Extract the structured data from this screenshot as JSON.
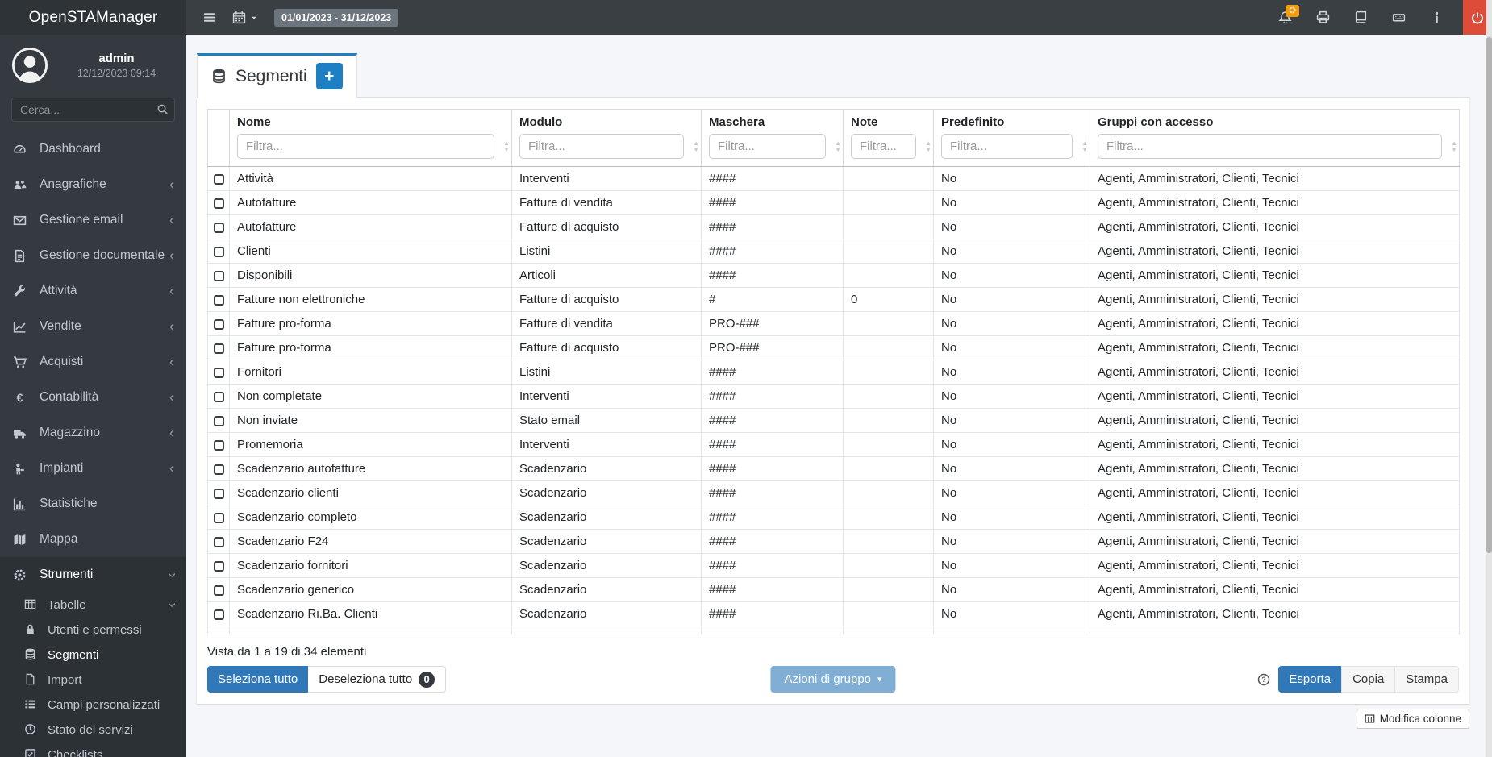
{
  "brand": "OpenSTAManager",
  "topbar": {
    "date_range": "01/01/2023 - 31/12/2023",
    "icons": [
      "menu-icon",
      "calendar-icon",
      "bell-icon",
      "printer-icon",
      "book-icon",
      "keyboard-icon",
      "info-icon",
      "power-icon"
    ]
  },
  "sidebar": {
    "user": {
      "name": "admin",
      "datetime": "12/12/2023 09:14"
    },
    "search_placeholder": "Cerca...",
    "items": [
      {
        "label": "Dashboard",
        "icon": "tachometer-icon",
        "chevron": false
      },
      {
        "label": "Anagrafiche",
        "icon": "users-icon",
        "chevron": true
      },
      {
        "label": "Gestione email",
        "icon": "envelope-icon",
        "chevron": true
      },
      {
        "label": "Gestione documentale",
        "icon": "document-icon",
        "chevron": true
      },
      {
        "label": "Attività",
        "icon": "wrench-icon",
        "chevron": true
      },
      {
        "label": "Vendite",
        "icon": "chart-line-icon",
        "chevron": true
      },
      {
        "label": "Acquisti",
        "icon": "cart-icon",
        "chevron": true
      },
      {
        "label": "Contabilità",
        "icon": "euro-icon",
        "chevron": true
      },
      {
        "label": "Magazzino",
        "icon": "truck-icon",
        "chevron": true
      },
      {
        "label": "Impianti",
        "icon": "machine-icon",
        "chevron": true
      },
      {
        "label": "Statistiche",
        "icon": "bar-chart-icon",
        "chevron": false
      },
      {
        "label": "Mappa",
        "icon": "map-icon",
        "chevron": false
      }
    ],
    "tools": {
      "label": "Strumenti",
      "icon": "gear-icon",
      "children": [
        {
          "label": "Tabelle",
          "icon": "table-icon",
          "expanded": true
        },
        {
          "label": "Utenti e permessi",
          "icon": "lock-icon"
        },
        {
          "label": "Segmenti",
          "icon": "database-icon",
          "active": true
        },
        {
          "label": "Import",
          "icon": "import-icon"
        },
        {
          "label": "Campi personalizzati",
          "icon": "list-icon"
        },
        {
          "label": "Stato dei servizi",
          "icon": "clock-icon"
        },
        {
          "label": "Checklists",
          "icon": "checklist-icon"
        }
      ]
    }
  },
  "page": {
    "tab_title": "Segmenti",
    "add_label": "+"
  },
  "table": {
    "columns": [
      {
        "label": "Nome",
        "filter_placeholder": "Filtra..."
      },
      {
        "label": "Modulo",
        "filter_placeholder": "Filtra..."
      },
      {
        "label": "Maschera",
        "filter_placeholder": "Filtra..."
      },
      {
        "label": "Note",
        "filter_placeholder": "Filtra..."
      },
      {
        "label": "Predefinito",
        "filter_placeholder": "Filtra..."
      },
      {
        "label": "Gruppi con accesso",
        "filter_placeholder": "Filtra..."
      }
    ],
    "rows": [
      {
        "name": "Attività",
        "module": "Interventi",
        "mask": "####",
        "note": "",
        "default": "No",
        "groups": "Agenti, Amministratori, Clienti, Tecnici"
      },
      {
        "name": "Autofatture",
        "module": "Fatture di vendita",
        "mask": "####",
        "note": "",
        "default": "No",
        "groups": "Agenti, Amministratori, Clienti, Tecnici"
      },
      {
        "name": "Autofatture",
        "module": "Fatture di acquisto",
        "mask": "####",
        "note": "",
        "default": "No",
        "groups": "Agenti, Amministratori, Clienti, Tecnici"
      },
      {
        "name": "Clienti",
        "module": "Listini",
        "mask": "####",
        "note": "",
        "default": "No",
        "groups": "Agenti, Amministratori, Clienti, Tecnici"
      },
      {
        "name": "Disponibili",
        "module": "Articoli",
        "mask": "####",
        "note": "",
        "default": "No",
        "groups": "Agenti, Amministratori, Clienti, Tecnici"
      },
      {
        "name": "Fatture non elettroniche",
        "module": "Fatture di acquisto",
        "mask": "#",
        "note": "0",
        "default": "No",
        "groups": "Agenti, Amministratori, Clienti, Tecnici"
      },
      {
        "name": "Fatture pro-forma",
        "module": "Fatture di vendita",
        "mask": "PRO-###",
        "note": "",
        "default": "No",
        "groups": "Agenti, Amministratori, Clienti, Tecnici"
      },
      {
        "name": "Fatture pro-forma",
        "module": "Fatture di acquisto",
        "mask": "PRO-###",
        "note": "",
        "default": "No",
        "groups": "Agenti, Amministratori, Clienti, Tecnici"
      },
      {
        "name": "Fornitori",
        "module": "Listini",
        "mask": "####",
        "note": "",
        "default": "No",
        "groups": "Agenti, Amministratori, Clienti, Tecnici"
      },
      {
        "name": "Non completate",
        "module": "Interventi",
        "mask": "####",
        "note": "",
        "default": "No",
        "groups": "Agenti, Amministratori, Clienti, Tecnici"
      },
      {
        "name": "Non inviate",
        "module": "Stato email",
        "mask": "####",
        "note": "",
        "default": "No",
        "groups": "Agenti, Amministratori, Clienti, Tecnici"
      },
      {
        "name": "Promemoria",
        "module": "Interventi",
        "mask": "####",
        "note": "",
        "default": "No",
        "groups": "Agenti, Amministratori, Clienti, Tecnici"
      },
      {
        "name": "Scadenzario autofatture",
        "module": "Scadenzario",
        "mask": "####",
        "note": "",
        "default": "No",
        "groups": "Agenti, Amministratori, Clienti, Tecnici"
      },
      {
        "name": "Scadenzario clienti",
        "module": "Scadenzario",
        "mask": "####",
        "note": "",
        "default": "No",
        "groups": "Agenti, Amministratori, Clienti, Tecnici"
      },
      {
        "name": "Scadenzario completo",
        "module": "Scadenzario",
        "mask": "####",
        "note": "",
        "default": "No",
        "groups": "Agenti, Amministratori, Clienti, Tecnici"
      },
      {
        "name": "Scadenzario F24",
        "module": "Scadenzario",
        "mask": "####",
        "note": "",
        "default": "No",
        "groups": "Agenti, Amministratori, Clienti, Tecnici"
      },
      {
        "name": "Scadenzario fornitori",
        "module": "Scadenzario",
        "mask": "####",
        "note": "",
        "default": "No",
        "groups": "Agenti, Amministratori, Clienti, Tecnici"
      },
      {
        "name": "Scadenzario generico",
        "module": "Scadenzario",
        "mask": "####",
        "note": "",
        "default": "No",
        "groups": "Agenti, Amministratori, Clienti, Tecnici"
      },
      {
        "name": "Scadenzario Ri.Ba. Clienti",
        "module": "Scadenzario",
        "mask": "####",
        "note": "",
        "default": "No",
        "groups": "Agenti, Amministratori, Clienti, Tecnici"
      }
    ]
  },
  "footer": {
    "summary": "Vista da 1 a 19 di 34 elementi",
    "select_all": "Seleziona tutto",
    "deselect_all": "Deseleziona tutto",
    "deselect_count": "0",
    "group_actions": "Azioni di gruppo",
    "export": "Esporta",
    "copy": "Copia",
    "print": "Stampa",
    "edit_columns": "Modifica colonne"
  },
  "colors": {
    "accent_blue": "#1e7fc2",
    "primary_button": "#3178b8",
    "disabled_primary": "#81aed5",
    "danger_red": "#dd4b39",
    "badge_orange": "#f39c12",
    "sidebar_dark": "#343a40",
    "badge_gray": "#6c757d"
  }
}
